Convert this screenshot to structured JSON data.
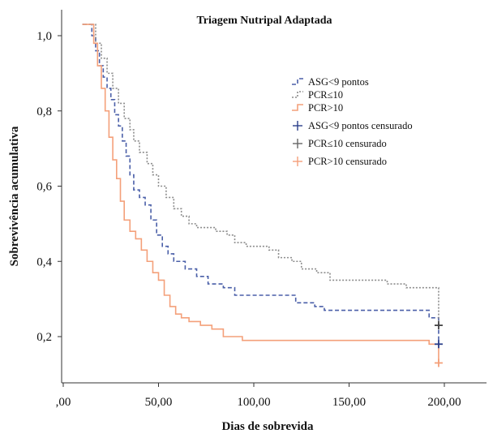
{
  "chart_data": {
    "type": "line",
    "title": "Triagem Nutripal Adaptada",
    "xlabel": "Dias de sobrevida",
    "ylabel": "Sobrevivência acumulativa",
    "xlim": [
      0,
      210
    ],
    "ylim": [
      0.08,
      1.06
    ],
    "x_ticks": [
      0,
      50,
      100,
      150,
      200
    ],
    "x_tick_labels": [
      ",00",
      "50,00",
      "100,00",
      "150,00",
      "200,00"
    ],
    "y_ticks": [
      0.2,
      0.4,
      0.6,
      0.8,
      1.0
    ],
    "y_tick_labels": [
      "0,2",
      "0,4",
      "0,6",
      "0,8",
      "1,0"
    ],
    "legend_position": "right",
    "series": [
      {
        "name": "ASG<9 pontos",
        "color": "#4a5fa8",
        "dash": "5,3",
        "censor_name": "ASG<9 pontos censurado",
        "points": [
          [
            10,
            1.03
          ],
          [
            13,
            1.03
          ],
          [
            15,
            1.0
          ],
          [
            17,
            0.96
          ],
          [
            19,
            0.92
          ],
          [
            21,
            0.89
          ],
          [
            23,
            0.86
          ],
          [
            25,
            0.83
          ],
          [
            27,
            0.79
          ],
          [
            29,
            0.76
          ],
          [
            31,
            0.72
          ],
          [
            33,
            0.68
          ],
          [
            35,
            0.63
          ],
          [
            37,
            0.59
          ],
          [
            40,
            0.57
          ],
          [
            43,
            0.55
          ],
          [
            46,
            0.51
          ],
          [
            49,
            0.47
          ],
          [
            52,
            0.44
          ],
          [
            55,
            0.42
          ],
          [
            58,
            0.4
          ],
          [
            64,
            0.38
          ],
          [
            70,
            0.36
          ],
          [
            76,
            0.34
          ],
          [
            84,
            0.33
          ],
          [
            90,
            0.31
          ],
          [
            105,
            0.31
          ],
          [
            118,
            0.31
          ],
          [
            122,
            0.29
          ],
          [
            132,
            0.28
          ],
          [
            137,
            0.27
          ],
          [
            175,
            0.27
          ],
          [
            192,
            0.25
          ],
          [
            197,
            0.18
          ]
        ],
        "censored": [
          [
            197,
            0.18
          ]
        ]
      },
      {
        "name": "PCR≤10",
        "color": "#8c8c8c",
        "dash": "2,2",
        "censor_name": "PCR≤10 censurado",
        "points": [
          [
            10,
            1.03
          ],
          [
            14,
            1.03
          ],
          [
            17,
            0.98
          ],
          [
            20,
            0.94
          ],
          [
            23,
            0.9
          ],
          [
            26,
            0.86
          ],
          [
            29,
            0.82
          ],
          [
            32,
            0.78
          ],
          [
            35,
            0.75
          ],
          [
            37,
            0.72
          ],
          [
            40,
            0.69
          ],
          [
            44,
            0.66
          ],
          [
            47,
            0.63
          ],
          [
            50,
            0.6
          ],
          [
            54,
            0.57
          ],
          [
            58,
            0.54
          ],
          [
            62,
            0.52
          ],
          [
            66,
            0.5
          ],
          [
            70,
            0.49
          ],
          [
            80,
            0.48
          ],
          [
            86,
            0.47
          ],
          [
            90,
            0.45
          ],
          [
            96,
            0.44
          ],
          [
            108,
            0.43
          ],
          [
            113,
            0.41
          ],
          [
            120,
            0.4
          ],
          [
            125,
            0.38
          ],
          [
            133,
            0.37
          ],
          [
            140,
            0.35
          ],
          [
            155,
            0.35
          ],
          [
            170,
            0.34
          ],
          [
            180,
            0.33
          ],
          [
            193,
            0.33
          ],
          [
            197,
            0.31
          ],
          [
            197,
            0.23
          ]
        ],
        "censored": [
          [
            197,
            0.23
          ]
        ]
      },
      {
        "name": "PCR>10",
        "color": "#f4a07a",
        "dash": "",
        "censor_name": "PCR>10 censurado",
        "points": [
          [
            10,
            1.03
          ],
          [
            14,
            1.03
          ],
          [
            16,
            0.98
          ],
          [
            18,
            0.92
          ],
          [
            20,
            0.86
          ],
          [
            22,
            0.8
          ],
          [
            24,
            0.73
          ],
          [
            26,
            0.67
          ],
          [
            28,
            0.62
          ],
          [
            30,
            0.56
          ],
          [
            32,
            0.51
          ],
          [
            35,
            0.48
          ],
          [
            38,
            0.46
          ],
          [
            41,
            0.43
          ],
          [
            44,
            0.4
          ],
          [
            47,
            0.37
          ],
          [
            50,
            0.35
          ],
          [
            53,
            0.31
          ],
          [
            56,
            0.28
          ],
          [
            59,
            0.26
          ],
          [
            62,
            0.25
          ],
          [
            66,
            0.24
          ],
          [
            72,
            0.23
          ],
          [
            78,
            0.22
          ],
          [
            84,
            0.2
          ],
          [
            94,
            0.19
          ],
          [
            120,
            0.19
          ],
          [
            150,
            0.19
          ],
          [
            170,
            0.19
          ],
          [
            192,
            0.18
          ],
          [
            197,
            0.13
          ]
        ],
        "censored": [
          [
            197,
            0.13
          ]
        ]
      }
    ]
  }
}
